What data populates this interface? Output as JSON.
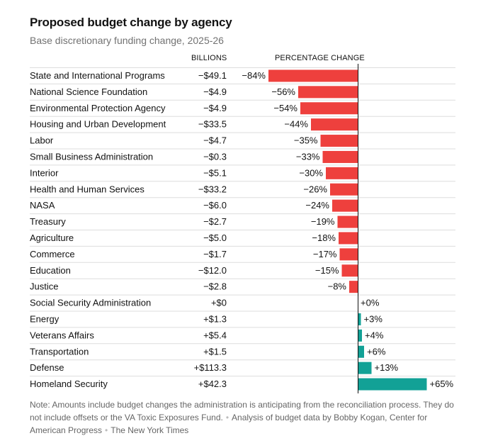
{
  "header": {
    "title": "Proposed budget change by agency",
    "subtitle": "Base discretionary funding change, 2025-26"
  },
  "columns": {
    "billions": "BILLIONS",
    "percentage": "PERCENTAGE CHANGE"
  },
  "colors": {
    "negative": "#ee403d",
    "positive": "#12a196",
    "gridline": "#dddddd",
    "zero_axis": "#121212"
  },
  "chart_data": {
    "type": "bar",
    "orientation": "horizontal",
    "title": "Proposed budget change by agency",
    "subtitle": "Base discretionary funding change, 2025-26",
    "categories": [
      "State and International Programs",
      "National Science Foundation",
      "Environmental Protection Agency",
      "Housing and Urban Development",
      "Labor",
      "Small Business Administration",
      "Interior",
      "Health and Human Services",
      "NASA",
      "Treasury",
      "Agriculture",
      "Commerce",
      "Education",
      "Justice",
      "Social Security Administration",
      "Energy",
      "Veterans Affairs",
      "Transportation",
      "Defense",
      "Homeland Security"
    ],
    "values": [
      -84,
      -56,
      -54,
      -44,
      -35,
      -33,
      -30,
      -26,
      -24,
      -19,
      -18,
      -17,
      -15,
      -8,
      0,
      3,
      4,
      6,
      13,
      65
    ],
    "value_labels": [
      "−84%",
      "−56%",
      "−54%",
      "−44%",
      "−35%",
      "−33%",
      "−30%",
      "−26%",
      "−24%",
      "−19%",
      "−18%",
      "−17%",
      "−15%",
      "−8%",
      "+0%",
      "+3%",
      "+4%",
      "+6%",
      "+13%",
      "+65%"
    ],
    "billions_labels": [
      "−$49.1",
      "−$4.9",
      "−$4.9",
      "−$33.5",
      "−$4.7",
      "−$0.3",
      "−$5.1",
      "−$33.2",
      "−$6.0",
      "−$2.7",
      "−$5.0",
      "−$1.7",
      "−$12.0",
      "−$2.8",
      "+$0",
      "+$1.3",
      "+$5.4",
      "+$1.5",
      "+$113.3",
      "+$42.3"
    ],
    "xlabel": "PERCENTAGE CHANGE",
    "ylabel": "",
    "xlim": [
      -84,
      65
    ]
  },
  "note": {
    "text": "Note: Amounts include budget changes the administration is anticipating from the reconciliation process. They do not include offsets or the VA Toxic Exposures Fund.",
    "source": "Analysis of budget data by Bobby Kogan, Center for American Progress",
    "credit": "The New York Times"
  }
}
